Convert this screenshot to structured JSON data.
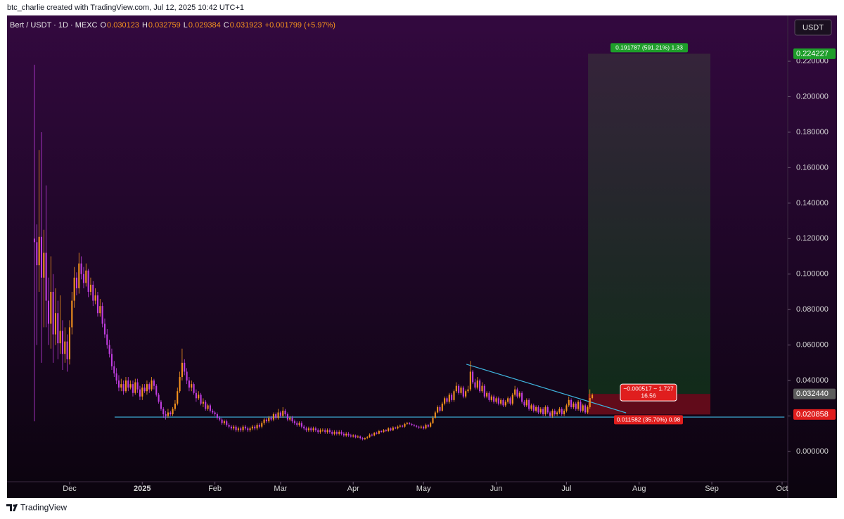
{
  "header": {
    "credit": "btc_charlie created with TradingView.com, Jul 12, 2025 10:42 UTC+1",
    "symbol": "Bert / USDT · 1D · MEXC",
    "ohlc": [
      {
        "key": "O",
        "value": "0.030123"
      },
      {
        "key": "H",
        "value": "0.032759"
      },
      {
        "key": "L",
        "value": "0.029384"
      },
      {
        "key": "C",
        "value": "0.031923"
      }
    ],
    "change": "+0.001799 (+5.97%)"
  },
  "currency_button": "USDT",
  "footer_logo": "TradingView",
  "chart_data": {
    "type": "candlestick",
    "up_color": "#f7941d",
    "down_color": "#c13de0",
    "x": [
      -15,
      -14,
      -13,
      -12,
      -11,
      -10,
      -9,
      -8,
      -7,
      -6,
      -5,
      -4,
      -3,
      -2,
      -1,
      0,
      1,
      2,
      3,
      4,
      5,
      6,
      7,
      8,
      9,
      10,
      11,
      12,
      13,
      14,
      15,
      16,
      17,
      18,
      19,
      20,
      21,
      22,
      23,
      24,
      25,
      26,
      27,
      28,
      29,
      30,
      31,
      32,
      33,
      34,
      35,
      36,
      37,
      38,
      39,
      40,
      41,
      42,
      43,
      44,
      45,
      46,
      47,
      48,
      49,
      50,
      51,
      52,
      53,
      54,
      55,
      56,
      57,
      58,
      59,
      60,
      61,
      62,
      63,
      64,
      65,
      66,
      67,
      68,
      69,
      70,
      71,
      72,
      73,
      74,
      75,
      76,
      77,
      78,
      79,
      80,
      81,
      82,
      83,
      84,
      85,
      86,
      87,
      88,
      89,
      90,
      91,
      92,
      93,
      94,
      95,
      96,
      97,
      98,
      99,
      100,
      101,
      102,
      103,
      104,
      105,
      106,
      107,
      108,
      109,
      110,
      111,
      112,
      113,
      114,
      115,
      116,
      117,
      118,
      119,
      120,
      121,
      122,
      123,
      124,
      125,
      126,
      127,
      128,
      129,
      130,
      131,
      132,
      133,
      134,
      135,
      136,
      137,
      138,
      139,
      140,
      141,
      142,
      143,
      144,
      145,
      146,
      147,
      148,
      149,
      150,
      151,
      152,
      153,
      154,
      155,
      156,
      157,
      158,
      159,
      160,
      161,
      162,
      163,
      164,
      165,
      166,
      167,
      168,
      169,
      170,
      171,
      172,
      173,
      174,
      175,
      176,
      177,
      178,
      179,
      180,
      181,
      182,
      183,
      184,
      185,
      186,
      187,
      188,
      189,
      190,
      191,
      192,
      193,
      194,
      195,
      196,
      197,
      198,
      199,
      200,
      201,
      202,
      203,
      204,
      205,
      206,
      207,
      208,
      209,
      210,
      211,
      212,
      213,
      214,
      215,
      216,
      217,
      218,
      219,
      220,
      221,
      222,
      223
    ],
    "open": [
      0.12,
      0.118,
      0.105,
      0.121,
      0.098,
      0.112,
      0.085,
      0.072,
      0.09,
      0.066,
      0.078,
      0.061,
      0.068,
      0.055,
      0.062,
      0.052,
      0.07,
      0.085,
      0.098,
      0.092,
      0.106,
      0.1,
      0.095,
      0.102,
      0.09,
      0.094,
      0.085,
      0.088,
      0.078,
      0.082,
      0.072,
      0.066,
      0.06,
      0.055,
      0.048,
      0.044,
      0.04,
      0.036,
      0.038,
      0.034,
      0.04,
      0.036,
      0.038,
      0.033,
      0.039,
      0.035,
      0.031,
      0.036,
      0.034,
      0.038,
      0.035,
      0.04,
      0.037,
      0.032,
      0.028,
      0.024,
      0.021,
      0.02,
      0.022,
      0.021,
      0.024,
      0.027,
      0.034,
      0.042,
      0.05,
      0.045,
      0.04,
      0.036,
      0.038,
      0.033,
      0.03,
      0.032,
      0.027,
      0.028,
      0.024,
      0.026,
      0.023,
      0.022,
      0.021,
      0.019,
      0.018,
      0.016,
      0.017,
      0.015,
      0.014,
      0.013,
      0.014,
      0.012,
      0.013,
      0.012,
      0.014,
      0.013,
      0.012,
      0.013,
      0.014,
      0.013,
      0.015,
      0.014,
      0.016,
      0.018,
      0.017,
      0.019,
      0.018,
      0.021,
      0.019,
      0.022,
      0.02,
      0.023,
      0.021,
      0.018,
      0.019,
      0.017,
      0.016,
      0.015,
      0.016,
      0.014,
      0.013,
      0.012,
      0.013,
      0.012,
      0.013,
      0.012,
      0.011,
      0.012,
      0.012,
      0.011,
      0.012,
      0.011,
      0.01,
      0.011,
      0.01,
      0.011,
      0.01,
      0.009,
      0.01,
      0.009,
      0.0085,
      0.009,
      0.008,
      0.0085,
      0.0075,
      0.007,
      0.0075,
      0.008,
      0.0095,
      0.009,
      0.0105,
      0.01,
      0.0115,
      0.011,
      0.012,
      0.0115,
      0.013,
      0.012,
      0.0135,
      0.013,
      0.014,
      0.0145,
      0.014,
      0.0155,
      0.016,
      0.0155,
      0.015,
      0.0145,
      0.014,
      0.0135,
      0.014,
      0.013,
      0.015,
      0.014,
      0.016,
      0.019,
      0.022,
      0.025,
      0.023,
      0.027,
      0.03,
      0.028,
      0.032,
      0.029,
      0.034,
      0.037,
      0.033,
      0.036,
      0.031,
      0.034,
      0.035,
      0.045,
      0.039,
      0.036,
      0.04,
      0.034,
      0.037,
      0.031,
      0.033,
      0.029,
      0.031,
      0.028,
      0.03,
      0.027,
      0.029,
      0.026,
      0.028,
      0.03,
      0.027,
      0.032,
      0.035,
      0.031,
      0.033,
      0.028,
      0.026,
      0.029,
      0.024,
      0.026,
      0.023,
      0.025,
      0.022,
      0.024,
      0.021,
      0.025,
      0.022,
      0.02,
      0.023,
      0.021,
      0.022,
      0.024,
      0.021,
      0.023,
      0.026,
      0.029,
      0.025,
      0.027,
      0.024,
      0.028,
      0.023,
      0.026,
      0.022,
      0.025,
      0.030123
    ],
    "high": [
      0.218,
      0.128,
      0.17,
      0.18,
      0.125,
      0.15,
      0.098,
      0.11,
      0.1,
      0.092,
      0.085,
      0.088,
      0.074,
      0.07,
      0.066,
      0.074,
      0.09,
      0.104,
      0.101,
      0.112,
      0.11,
      0.104,
      0.106,
      0.103,
      0.098,
      0.096,
      0.092,
      0.09,
      0.086,
      0.084,
      0.075,
      0.069,
      0.063,
      0.058,
      0.051,
      0.047,
      0.043,
      0.041,
      0.04,
      0.042,
      0.042,
      0.04,
      0.04,
      0.041,
      0.041,
      0.037,
      0.038,
      0.038,
      0.04,
      0.039,
      0.042,
      0.041,
      0.038,
      0.033,
      0.029,
      0.025,
      0.023,
      0.024,
      0.023,
      0.025,
      0.029,
      0.036,
      0.045,
      0.058,
      0.052,
      0.047,
      0.042,
      0.04,
      0.039,
      0.035,
      0.034,
      0.033,
      0.03,
      0.029,
      0.027,
      0.027,
      0.024,
      0.023,
      0.022,
      0.02,
      0.019,
      0.018,
      0.018,
      0.016,
      0.015,
      0.015,
      0.015,
      0.014,
      0.014,
      0.015,
      0.015,
      0.014,
      0.014,
      0.015,
      0.015,
      0.016,
      0.016,
      0.017,
      0.019,
      0.019,
      0.02,
      0.02,
      0.022,
      0.022,
      0.024,
      0.023,
      0.025,
      0.024,
      0.022,
      0.02,
      0.02,
      0.018,
      0.017,
      0.017,
      0.017,
      0.015,
      0.014,
      0.014,
      0.014,
      0.014,
      0.014,
      0.013,
      0.013,
      0.013,
      0.013,
      0.013,
      0.013,
      0.012,
      0.012,
      0.012,
      0.012,
      0.012,
      0.011,
      0.011,
      0.011,
      0.01,
      0.0098,
      0.0096,
      0.0092,
      0.009,
      0.0082,
      0.008,
      0.0087,
      0.0102,
      0.0101,
      0.011,
      0.0112,
      0.0122,
      0.012,
      0.0127,
      0.0126,
      0.0137,
      0.0136,
      0.0142,
      0.014,
      0.0147,
      0.0152,
      0.0151,
      0.0162,
      0.0167,
      0.0166,
      0.016,
      0.0155,
      0.015,
      0.0145,
      0.0148,
      0.0146,
      0.0157,
      0.0155,
      0.0168,
      0.02,
      0.023,
      0.026,
      0.026,
      0.028,
      0.031,
      0.031,
      0.033,
      0.033,
      0.035,
      0.039,
      0.038,
      0.037,
      0.037,
      0.035,
      0.037,
      0.051,
      0.046,
      0.041,
      0.042,
      0.041,
      0.039,
      0.038,
      0.034,
      0.034,
      0.032,
      0.032,
      0.031,
      0.031,
      0.03,
      0.03,
      0.029,
      0.031,
      0.031,
      0.033,
      0.037,
      0.036,
      0.034,
      0.034,
      0.029,
      0.03,
      0.03,
      0.027,
      0.027,
      0.026,
      0.026,
      0.025,
      0.025,
      0.026,
      0.026,
      0.023,
      0.024,
      0.024,
      0.023,
      0.025,
      0.025,
      0.024,
      0.027,
      0.031,
      0.03,
      0.028,
      0.028,
      0.029,
      0.029,
      0.027,
      0.027,
      0.026,
      0.035,
      0.032759
    ],
    "low": [
      0.017,
      0.06,
      0.09,
      0.05,
      0.07,
      0.07,
      0.06,
      0.058,
      0.05,
      0.06,
      0.052,
      0.055,
      0.046,
      0.05,
      0.045,
      0.049,
      0.066,
      0.081,
      0.088,
      0.089,
      0.097,
      0.092,
      0.093,
      0.087,
      0.088,
      0.082,
      0.083,
      0.076,
      0.076,
      0.07,
      0.064,
      0.058,
      0.053,
      0.046,
      0.042,
      0.038,
      0.034,
      0.034,
      0.032,
      0.033,
      0.034,
      0.035,
      0.031,
      0.032,
      0.033,
      0.029,
      0.029,
      0.033,
      0.032,
      0.033,
      0.034,
      0.035,
      0.031,
      0.027,
      0.023,
      0.019,
      0.018,
      0.019,
      0.02,
      0.02,
      0.023,
      0.026,
      0.033,
      0.04,
      0.043,
      0.038,
      0.034,
      0.034,
      0.032,
      0.028,
      0.029,
      0.026,
      0.025,
      0.023,
      0.023,
      0.022,
      0.021,
      0.02,
      0.018,
      0.017,
      0.015,
      0.015,
      0.014,
      0.013,
      0.012,
      0.012,
      0.011,
      0.011,
      0.011,
      0.011,
      0.012,
      0.011,
      0.011,
      0.012,
      0.012,
      0.012,
      0.013,
      0.013,
      0.015,
      0.016,
      0.016,
      0.017,
      0.017,
      0.018,
      0.018,
      0.019,
      0.019,
      0.02,
      0.017,
      0.017,
      0.016,
      0.015,
      0.014,
      0.014,
      0.013,
      0.012,
      0.011,
      0.011,
      0.011,
      0.011,
      0.011,
      0.01,
      0.01,
      0.011,
      0.01,
      0.01,
      0.01,
      0.009,
      0.009,
      0.009,
      0.009,
      0.009,
      0.0082,
      0.0082,
      0.0082,
      0.0078,
      0.0078,
      0.0074,
      0.0075,
      0.0068,
      0.0062,
      0.0064,
      0.007,
      0.0077,
      0.0085,
      0.0086,
      0.0096,
      0.0097,
      0.0106,
      0.0105,
      0.011,
      0.011,
      0.0114,
      0.0115,
      0.0126,
      0.0125,
      0.0134,
      0.0135,
      0.0134,
      0.015,
      0.015,
      0.0144,
      0.014,
      0.0134,
      0.0128,
      0.0128,
      0.0124,
      0.0125,
      0.0134,
      0.0135,
      0.0155,
      0.0185,
      0.0215,
      0.022,
      0.0225,
      0.026,
      0.027,
      0.027,
      0.028,
      0.028,
      0.033,
      0.032,
      0.032,
      0.03,
      0.03,
      0.033,
      0.034,
      0.038,
      0.035,
      0.035,
      0.033,
      0.033,
      0.03,
      0.03,
      0.028,
      0.028,
      0.027,
      0.027,
      0.026,
      0.026,
      0.025,
      0.025,
      0.027,
      0.026,
      0.026,
      0.031,
      0.03,
      0.03,
      0.027,
      0.025,
      0.025,
      0.023,
      0.023,
      0.022,
      0.022,
      0.021,
      0.021,
      0.02,
      0.02,
      0.021,
      0.019,
      0.019,
      0.02,
      0.02,
      0.021,
      0.02,
      0.02,
      0.022,
      0.025,
      0.024,
      0.024,
      0.023,
      0.023,
      0.022,
      0.022,
      0.021,
      0.021,
      0.024,
      0.029384
    ],
    "close": [
      0.118,
      0.105,
      0.121,
      0.098,
      0.112,
      0.085,
      0.072,
      0.09,
      0.066,
      0.078,
      0.061,
      0.068,
      0.055,
      0.062,
      0.052,
      0.07,
      0.085,
      0.098,
      0.092,
      0.106,
      0.1,
      0.095,
      0.102,
      0.09,
      0.094,
      0.085,
      0.088,
      0.078,
      0.082,
      0.072,
      0.066,
      0.06,
      0.055,
      0.048,
      0.044,
      0.04,
      0.036,
      0.038,
      0.034,
      0.04,
      0.036,
      0.038,
      0.033,
      0.039,
      0.035,
      0.031,
      0.036,
      0.034,
      0.038,
      0.035,
      0.04,
      0.037,
      0.032,
      0.028,
      0.024,
      0.021,
      0.02,
      0.022,
      0.021,
      0.024,
      0.027,
      0.034,
      0.042,
      0.05,
      0.045,
      0.04,
      0.036,
      0.038,
      0.033,
      0.03,
      0.032,
      0.027,
      0.028,
      0.024,
      0.026,
      0.023,
      0.022,
      0.021,
      0.019,
      0.018,
      0.016,
      0.017,
      0.015,
      0.014,
      0.013,
      0.014,
      0.012,
      0.013,
      0.012,
      0.014,
      0.013,
      0.012,
      0.013,
      0.014,
      0.013,
      0.015,
      0.014,
      0.016,
      0.018,
      0.017,
      0.019,
      0.018,
      0.021,
      0.019,
      0.022,
      0.02,
      0.023,
      0.021,
      0.018,
      0.019,
      0.017,
      0.016,
      0.015,
      0.016,
      0.014,
      0.013,
      0.012,
      0.013,
      0.012,
      0.013,
      0.012,
      0.011,
      0.012,
      0.012,
      0.011,
      0.012,
      0.011,
      0.01,
      0.011,
      0.01,
      0.011,
      0.01,
      0.009,
      0.01,
      0.009,
      0.0085,
      0.009,
      0.008,
      0.0085,
      0.0075,
      0.007,
      0.0075,
      0.008,
      0.0095,
      0.009,
      0.0105,
      0.01,
      0.0115,
      0.011,
      0.012,
      0.0115,
      0.013,
      0.012,
      0.0135,
      0.013,
      0.014,
      0.0145,
      0.014,
      0.0155,
      0.016,
      0.0155,
      0.015,
      0.0145,
      0.014,
      0.0135,
      0.014,
      0.013,
      0.015,
      0.014,
      0.016,
      0.019,
      0.022,
      0.025,
      0.023,
      0.027,
      0.03,
      0.028,
      0.032,
      0.029,
      0.034,
      0.037,
      0.033,
      0.036,
      0.031,
      0.034,
      0.035,
      0.045,
      0.039,
      0.036,
      0.04,
      0.034,
      0.037,
      0.031,
      0.033,
      0.029,
      0.031,
      0.028,
      0.03,
      0.027,
      0.029,
      0.026,
      0.028,
      0.03,
      0.027,
      0.032,
      0.035,
      0.031,
      0.033,
      0.028,
      0.026,
      0.029,
      0.024,
      0.026,
      0.023,
      0.025,
      0.022,
      0.024,
      0.021,
      0.025,
      0.022,
      0.02,
      0.023,
      0.021,
      0.022,
      0.024,
      0.021,
      0.023,
      0.026,
      0.029,
      0.025,
      0.027,
      0.024,
      0.028,
      0.023,
      0.026,
      0.022,
      0.025,
      0.030123,
      0.031923
    ],
    "xlim": [
      -26.7,
      306.4
    ],
    "xticks": [
      {
        "value": 0,
        "label": "Dec"
      },
      {
        "value": 31,
        "label": "2025"
      },
      {
        "value": 62,
        "label": "Feb"
      },
      {
        "value": 90,
        "label": "Mar"
      },
      {
        "value": 121,
        "label": "Apr"
      },
      {
        "value": 151,
        "label": "May"
      },
      {
        "value": 182,
        "label": "Jun"
      },
      {
        "value": 212,
        "label": "Jul"
      },
      {
        "value": 243,
        "label": "Aug"
      },
      {
        "value": 274,
        "label": "Sep"
      },
      {
        "value": 304,
        "label": "Oct"
      }
    ],
    "ylim": [
      -0.01705,
      0.2458
    ],
    "yticks": [
      {
        "value": 0,
        "label": "0.000000"
      },
      {
        "value": 0.02,
        "label": "0.020000"
      },
      {
        "value": 0.04,
        "label": "0.040000"
      },
      {
        "value": 0.06,
        "label": "0.060000"
      },
      {
        "value": 0.08,
        "label": "0.080000"
      },
      {
        "value": 0.1,
        "label": "0.100000"
      },
      {
        "value": 0.12,
        "label": "0.120000"
      },
      {
        "value": 0.14,
        "label": "0.140000"
      },
      {
        "value": 0.16,
        "label": "0.160000"
      },
      {
        "value": 0.18,
        "label": "0.180000"
      },
      {
        "value": 0.2,
        "label": "0.200000"
      },
      {
        "value": 0.22,
        "label": "0.220000"
      }
    ],
    "lines": [
      {
        "color": "#3fb6e0",
        "x": [
          169.3,
          237.4
        ],
        "values": [
          0.0492,
          0.0218
        ]
      },
      {
        "color": "#3fb6e0",
        "x": [
          19.2,
          305
        ],
        "values": [
          0.0194,
          0.0194
        ]
      }
    ],
    "position": {
      "x": [
        221.2,
        273.4
      ],
      "target": 0.224227,
      "entry": {
        "value": 0.03244,
        "label": "0.032440"
      },
      "stop": 0.020858,
      "target_color": "#1e9e2a",
      "stop_color": "#e01e1e",
      "entry_color": "#5d5d5d",
      "target_tag": "0.191787 (591.21%) 1.33",
      "entry_tag": [
        "−0.000517 ~ 1.727",
        "16.56"
      ],
      "stop_tag": "0.011582 (35.70%) 0.98"
    }
  }
}
